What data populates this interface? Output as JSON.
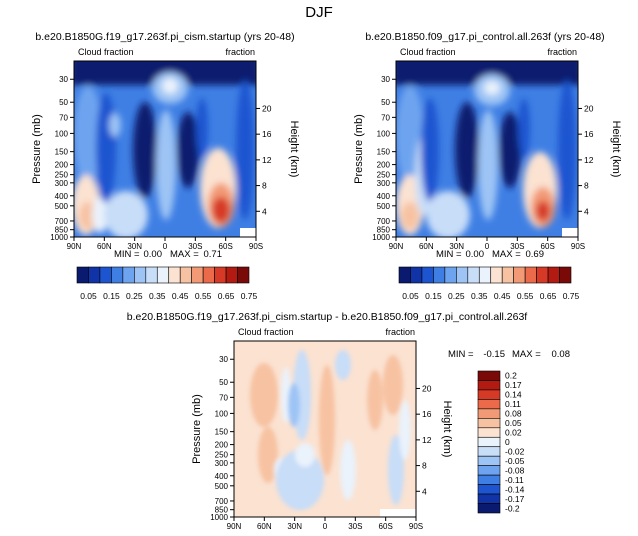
{
  "season_title": "DJF",
  "colorbar_top": {
    "labels": [
      "0.05",
      "0.15",
      "0.25",
      "0.35",
      "0.45",
      "0.55",
      "0.65",
      "0.75"
    ],
    "colors": [
      "#0a1a6e",
      "#1133a8",
      "#1d55d0",
      "#3f7fe4",
      "#6ea4ef",
      "#9dc4f5",
      "#c7ddf8",
      "#eaf2fb",
      "#fbe2d1",
      "#f7c2a2",
      "#f29a76",
      "#ea6a4a",
      "#d63a26",
      "#b21a12",
      "#7a0a08"
    ]
  },
  "colorbar_diff": {
    "labels": [
      "0.2",
      "0.17",
      "0.14",
      "0.11",
      "0.08",
      "0.05",
      "0.02",
      "0",
      "-0.02",
      "-0.05",
      "-0.08",
      "-0.11",
      "-0.14",
      "-0.17",
      "-0.2"
    ],
    "colors": [
      "#7a0a08",
      "#b21a12",
      "#d63a26",
      "#ea6a4a",
      "#f29a76",
      "#f7c2a2",
      "#fbe2d1",
      "#eaf2fb",
      "#c7ddf8",
      "#9dc4f5",
      "#6ea4ef",
      "#3f7fe4",
      "#1d55d0",
      "#1133a8",
      "#0a1a6e"
    ]
  },
  "chart_data": [
    {
      "type": "heatmap",
      "title": "b.e20.B1850G.f19_g17.263f.pi_cism.startup (yrs 20-48)",
      "corner_left": "Cloud fraction",
      "corner_right": "fraction",
      "xlabel": "",
      "ylabel": "Pressure (mb)",
      "ylabel_right": "Height (km)",
      "x_ticks": [
        "90N",
        "60N",
        "30N",
        "0",
        "30S",
        "60S",
        "90S"
      ],
      "y_ticks": [
        "30",
        "50",
        "70",
        "100",
        "150",
        "200",
        "250",
        "300",
        "400",
        "500",
        "700",
        "850",
        "1000"
      ],
      "height_ticks": [
        "20",
        "16",
        "12",
        "8",
        "4"
      ],
      "stats": {
        "min_label": "MIN =",
        "min": "0.00",
        "max_label": "MAX =",
        "max": "0.71"
      }
    },
    {
      "type": "heatmap",
      "title": "b.e20.B1850.f09_g17.pi_control.all.263f (yrs 20-48)",
      "corner_left": "Cloud fraction",
      "corner_right": "fraction",
      "xlabel": "",
      "ylabel": "Pressure (mb)",
      "ylabel_right": "Height (km)",
      "x_ticks": [
        "90N",
        "60N",
        "30N",
        "0",
        "30S",
        "60S",
        "90S"
      ],
      "y_ticks": [
        "30",
        "50",
        "70",
        "100",
        "150",
        "200",
        "250",
        "300",
        "400",
        "500",
        "700",
        "850",
        "1000"
      ],
      "height_ticks": [
        "20",
        "16",
        "12",
        "8",
        "4"
      ],
      "stats": {
        "min_label": "MIN =",
        "min": "0.00",
        "max_label": "MAX =",
        "max": "0.69"
      }
    },
    {
      "type": "heatmap",
      "title": "b.e20.B1850G.f19_g17.263f.pi_cism.startup - b.e20.B1850.f09_g17.pi_control.all.263f",
      "corner_left": "Cloud fraction",
      "corner_right": "fraction",
      "xlabel": "",
      "ylabel": "Pressure (mb)",
      "ylabel_right": "Height (km)",
      "x_ticks": [
        "90N",
        "60N",
        "30N",
        "0",
        "30S",
        "60S",
        "90S"
      ],
      "y_ticks": [
        "30",
        "50",
        "70",
        "100",
        "150",
        "200",
        "250",
        "300",
        "400",
        "500",
        "700",
        "850",
        "1000"
      ],
      "height_ticks": [
        "20",
        "16",
        "12",
        "8",
        "4"
      ],
      "stats": {
        "min_label": "MIN =",
        "min": "-0.15",
        "max_label": "MAX =",
        "max": "0.08"
      }
    }
  ]
}
